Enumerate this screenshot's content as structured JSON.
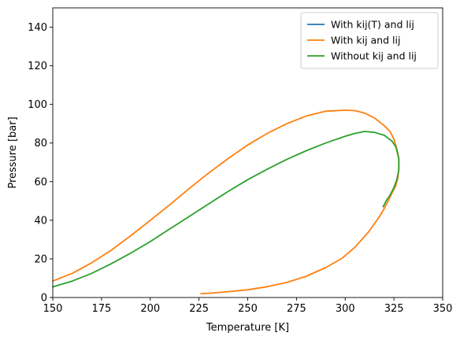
{
  "chart_data": {
    "type": "line",
    "xlabel": "Temperature [K]",
    "ylabel": "Pressure [bar]",
    "xlim": [
      150,
      350
    ],
    "ylim": [
      0,
      150
    ],
    "xticks": [
      150,
      175,
      200,
      225,
      250,
      275,
      300,
      325,
      350
    ],
    "yticks": [
      0,
      20,
      40,
      60,
      80,
      100,
      120,
      140
    ],
    "grid": false,
    "legend_position": "top-right",
    "series": [
      {
        "name": "With kij(T) and lij",
        "color": "#1f77b4",
        "x": [],
        "y": []
      },
      {
        "name": "With kij and lij",
        "color": "#ff7f0e",
        "x": [
          150,
          160,
          170,
          180,
          190,
          200,
          210,
          220,
          230,
          240,
          250,
          260,
          270,
          280,
          290,
          300,
          305,
          310,
          315,
          320,
          323,
          325,
          326.5,
          327.5,
          327.5,
          327,
          326,
          324,
          322,
          320,
          317,
          312,
          305,
          298,
          290,
          280,
          270,
          260,
          250,
          240,
          230,
          226
        ],
        "y": [
          8.5,
          12.5,
          18,
          24.5,
          32,
          40,
          48,
          56.5,
          64.5,
          72,
          79,
          85,
          90,
          94,
          96.5,
          97,
          96.8,
          95.5,
          93,
          89,
          86,
          82,
          77,
          72,
          67,
          62,
          58,
          54,
          50,
          46,
          41,
          34,
          26,
          20,
          15.5,
          11,
          7.8,
          5.6,
          4,
          3,
          2.2,
          2
        ]
      },
      {
        "name": "Without kij and lij",
        "color": "#2ca02c",
        "x": [
          150,
          160,
          170,
          180,
          190,
          200,
          210,
          220,
          230,
          240,
          250,
          260,
          270,
          280,
          290,
          300,
          305,
          310,
          315,
          320,
          324,
          326,
          327.5,
          327.5,
          326.5,
          325,
          323,
          321,
          319.5
        ],
        "y": [
          5.5,
          8.5,
          12.5,
          17.5,
          23,
          29,
          35.5,
          42,
          48.5,
          55,
          61,
          66.5,
          71.5,
          76,
          80,
          83.5,
          85,
          86,
          85.5,
          84,
          81,
          78,
          72,
          66,
          61,
          57,
          53,
          50,
          47
        ]
      }
    ]
  }
}
